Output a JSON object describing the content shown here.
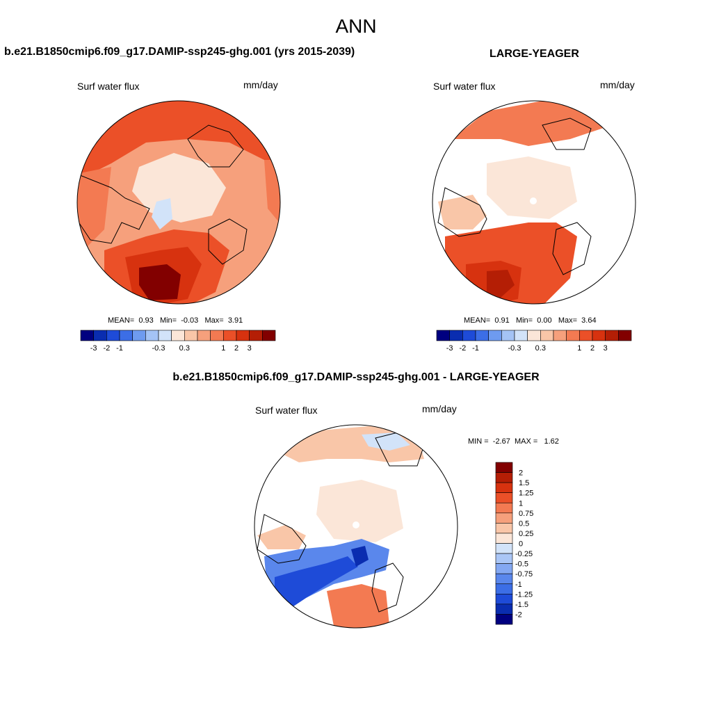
{
  "page_title": "ANN",
  "panel_left": {
    "title": "b.e21.B1850cmip6.f09_g17.DAMIP-ssp245-ghg.001 (yrs 2015-2039)",
    "variable": "Surf water flux",
    "units": "mm/day",
    "stats": {
      "mean_label": "MEAN=",
      "mean": "0.93",
      "min_label": "Min=",
      "min": "-0.03",
      "max_label": "Max=",
      "max": "3.91"
    }
  },
  "panel_right": {
    "title": "LARGE-YEAGER",
    "variable": "Surf water flux",
    "units": "mm/day",
    "stats": {
      "mean_label": "MEAN=",
      "mean": "0.91",
      "min_label": "Min=",
      "min": "0.00",
      "max_label": "Max=",
      "max": "3.64"
    }
  },
  "panel_diff": {
    "title": "b.e21.B1850cmip6.f09_g17.DAMIP-ssp245-ghg.001 - LARGE-YEAGER",
    "variable": "Surf water flux",
    "units": "mm/day",
    "stats": {
      "min_label": "MIN =",
      "min": "-2.67",
      "max_label": "MAX =",
      "max": "1.62"
    }
  },
  "colorbar_top": {
    "colors": [
      "#000080",
      "#0a2db0",
      "#1e4bd8",
      "#3c6ee6",
      "#6e9bf0",
      "#a4c3f5",
      "#d2e3f9",
      "#fbe6d8",
      "#f9c6a8",
      "#f6a07c",
      "#f37a52",
      "#eb5028",
      "#d7320f",
      "#b41e05",
      "#820000"
    ],
    "tick_labels": [
      "-3",
      "-2",
      "-1",
      "-0.3",
      "0.3",
      "1",
      "2",
      "3"
    ],
    "tick_values": [
      -3,
      -2,
      -1,
      -0.3,
      0.3,
      1,
      2,
      3
    ]
  },
  "colorbar_diff": {
    "colors": [
      "#000080",
      "#0a2db0",
      "#1e4bd8",
      "#3c6ee6",
      "#5a87ec",
      "#84a8f2",
      "#aac6f6",
      "#d2e3f9",
      "#fbe6d8",
      "#f9c6a8",
      "#f6a07c",
      "#f37a52",
      "#eb5028",
      "#d7320f",
      "#b41e05",
      "#820000"
    ],
    "tick_labels": [
      "-2",
      "-1.5",
      "-1.25",
      "-1",
      "-0.75",
      "-0.5",
      "-0.25",
      "0",
      "0.25",
      "0.5",
      "0.75",
      "1",
      "1.25",
      "1.5",
      "2"
    ]
  }
}
